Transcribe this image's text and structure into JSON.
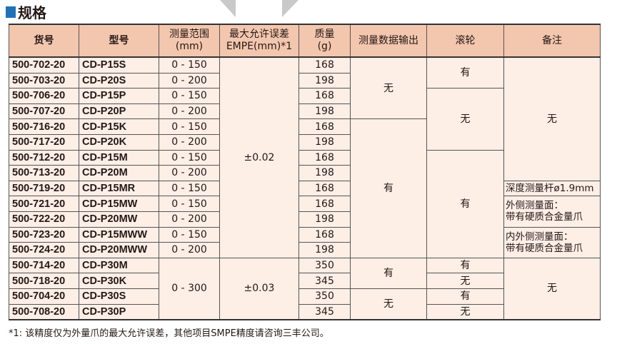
{
  "title": "规格",
  "headers": [
    "货号",
    "型号",
    "测量范围\n(mm)",
    "最大允许误差\nEMPE(mm)*1",
    "质量\n(g)",
    "测量数据输出",
    "滚轮",
    "备注"
  ],
  "rows": [
    [
      "500-702-20",
      "CD-P15S",
      "0 - 150",
      "168"
    ],
    [
      "500-703-20",
      "CD-P20S",
      "0 - 200",
      "198"
    ],
    [
      "500-706-20",
      "CD-P15P",
      "0 - 150",
      "168"
    ],
    [
      "500-707-20",
      "CD-P20P",
      "0 - 200",
      "198"
    ],
    [
      "500-716-20",
      "CD-P15K",
      "0 - 150",
      "168"
    ],
    [
      "500-717-20",
      "CD-P20K",
      "0 - 200",
      "198"
    ],
    [
      "500-712-20",
      "CD-P15M",
      "0 - 150",
      "168"
    ],
    [
      "500-713-20",
      "CD-P20M",
      "0 - 200",
      "198"
    ],
    [
      "500-719-20",
      "CD-P15MR",
      "0 - 150",
      "168"
    ],
    [
      "500-721-20",
      "CD-P15MW",
      "0 - 150",
      "168"
    ],
    [
      "500-722-20",
      "CD-P20MW",
      "0 - 200",
      "198"
    ],
    [
      "500-723-20",
      "CD-P15MWW",
      "0 - 150",
      "168"
    ],
    [
      "500-724-20",
      "CD-P20MWW",
      "0 - 200",
      "198"
    ],
    [
      "500-714-20",
      "CD-P30M",
      "0 - 300",
      "350"
    ],
    [
      "500-718-20",
      "CD-P30K",
      "0 - 300",
      "345"
    ],
    [
      "500-704-20",
      "CD-P30S",
      "0 - 300",
      "350"
    ],
    [
      "500-708-20",
      "CD-P30P",
      "0 - 300",
      "345"
    ]
  ],
  "mpe": [
    {
      "text": "±0.02",
      "span": 13
    },
    {
      "text": "±0.03",
      "span": 4
    }
  ],
  "output": [
    {
      "text": "无",
      "span": 4
    },
    {
      "text": "有",
      "span": 9
    },
    {
      "text": "有",
      "span": 2
    },
    {
      "text": "无",
      "span": 2
    }
  ],
  "roller": [
    {
      "text": "有",
      "span": 2
    },
    {
      "text": "无",
      "span": 4
    },
    {
      "text": "有",
      "span": 7
    },
    {
      "text": "有",
      "span": 1
    },
    {
      "text": "无",
      "span": 1
    },
    {
      "text": "有",
      "span": 1
    },
    {
      "text": "无",
      "span": 1
    }
  ],
  "notes": [
    {
      "text": "无",
      "span": 8
    },
    {
      "text": "深度测量杆ø1.9mm",
      "span": 1
    },
    {
      "text": "外侧测量面：\n带有硬质合金量爪",
      "span": 2
    },
    {
      "text": "内外侧测量面：\n带有硬质合金量爪",
      "span": 2
    },
    {
      "text": "无",
      "span": 4
    }
  ],
  "footnote": "*1: 该精度仅为外量爪的最大允许误差，其他项目SMPE精度请咨询三丰公司。",
  "colors": {
    "header_bg": "#f3c6ae",
    "body_bg": "#fdeee6",
    "accent": "#1f72b8"
  }
}
